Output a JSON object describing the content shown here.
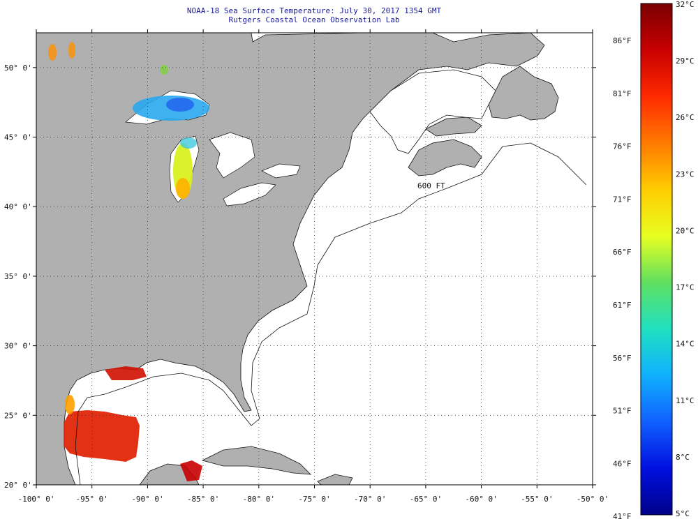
{
  "header": {
    "title": "NOAA-18 Sea Surface Temperature:  July 30, 2017 1354 GMT",
    "subtitle": "Rutgers Coastal Ocean Observation Lab"
  },
  "map": {
    "lon_range": [
      -100,
      -50
    ],
    "lat_range": [
      20,
      52.5
    ],
    "lon_ticks": [
      "-100° 0'",
      "-95° 0'",
      "-90° 0'",
      "-85° 0'",
      "-80° 0'",
      "-75° 0'",
      "-70° 0'",
      "-65° 0'",
      "-60° 0'",
      "-55° 0'",
      "-50° 0'"
    ],
    "lat_ticks": [
      "50° 0'",
      "45° 0'",
      "40° 0'",
      "35° 0'",
      "30° 0'",
      "25° 0'",
      "20° 0'"
    ],
    "grid": "dotted",
    "land_color": "#b0b0b0",
    "ocean_color": "#ffffff",
    "isobath_label": "600 FT"
  },
  "colorbar": {
    "celsius_labels": [
      "32°C",
      "29°C",
      "26°C",
      "23°C",
      "20°C",
      "17°C",
      "14°C",
      "11°C",
      "8°C",
      "5°C"
    ],
    "fahrenheit_labels": [
      "86°F",
      "81°F",
      "76°F",
      "71°F",
      "66°F",
      "61°F",
      "56°F",
      "51°F",
      "46°F",
      "41°F"
    ],
    "colors_top_to_bottom": [
      "#7a0000",
      "#c80000",
      "#ff2a00",
      "#ff7a00",
      "#ffcc00",
      "#e8ff20",
      "#60e060",
      "#20e0c0",
      "#10b0ff",
      "#1060ff",
      "#0010e0",
      "#00008a"
    ]
  }
}
